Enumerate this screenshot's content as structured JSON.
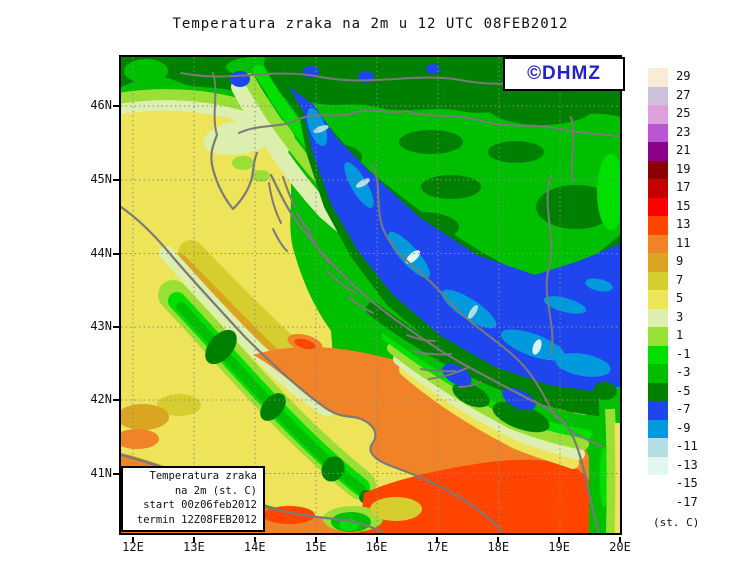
{
  "title": "Temperatura zraka na 2m u 12 UTC 08FEB2012",
  "logo": {
    "text": "©DHMZ",
    "color": "#2121CE"
  },
  "info_box": {
    "lines": [
      "Temperatura zraka",
      "na 2m (st. C)",
      "start 00z06feb2012",
      "termin 12Z08FEB2012"
    ]
  },
  "axes": {
    "lat_labels": [
      "46N",
      "45N",
      "44N",
      "43N",
      "42N",
      "41N"
    ],
    "lon_labels": [
      "12E",
      "13E",
      "14E",
      "15E",
      "16E",
      "17E",
      "18E",
      "19E",
      "20E"
    ]
  },
  "colorbar": {
    "unit": "(st. C)",
    "levels": [
      {
        "label": "29",
        "color": "#FAEBD7"
      },
      {
        "label": "27",
        "color": "#CDC1DC"
      },
      {
        "label": "25",
        "color": "#DDA0DD"
      },
      {
        "label": "23",
        "color": "#BA55D3"
      },
      {
        "label": "21",
        "color": "#8B008B"
      },
      {
        "label": "19",
        "color": "#8B0000"
      },
      {
        "label": "17",
        "color": "#C40000"
      },
      {
        "label": "15",
        "color": "#FF0000"
      },
      {
        "label": "13",
        "color": "#FF4500"
      },
      {
        "label": "11",
        "color": "#F08228"
      },
      {
        "label": "9",
        "color": "#DAA520"
      },
      {
        "label": "7",
        "color": "#D6CE2E"
      },
      {
        "label": "5",
        "color": "#EDE45A"
      },
      {
        "label": "3",
        "color": "#DCEFAF"
      },
      {
        "label": "1",
        "color": "#9ADF35"
      },
      {
        "label": "-1",
        "color": "#00DF00"
      },
      {
        "label": "-3",
        "color": "#00BE00"
      },
      {
        "label": "-5",
        "color": "#008000"
      },
      {
        "label": "-7",
        "color": "#1F45EF"
      },
      {
        "label": "-9",
        "color": "#0099DD"
      },
      {
        "label": "-11",
        "color": "#B3DDE3"
      },
      {
        "label": "-13",
        "color": "#E2F6F2"
      },
      {
        "label": "-15",
        "color": "#FFFFFF"
      },
      {
        "label": "-17",
        "color": "#FFFFFF"
      }
    ]
  },
  "map_colors": {
    "grid_line": "#8A8A8A",
    "coastline": "#7A7A7A",
    "frame": "#000000",
    "background": "#FFFFFF"
  }
}
